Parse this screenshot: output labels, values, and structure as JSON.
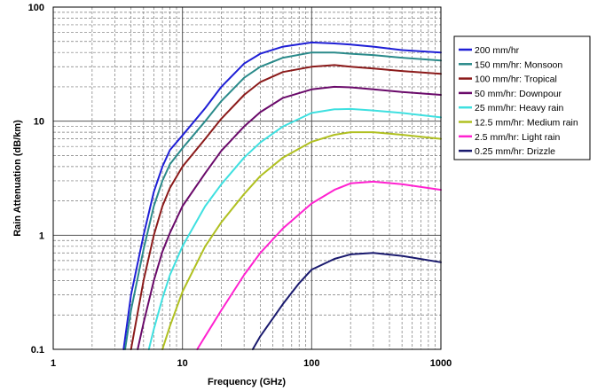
{
  "chart_data": {
    "type": "line",
    "xlabel": "Frequency (GHz)",
    "ylabel": "Rain Attenuation (dB/km)",
    "xscale": "log",
    "yscale": "log",
    "xlim": [
      1,
      1000
    ],
    "ylim": [
      0.1,
      100
    ],
    "x_ticks": [
      "1",
      "10",
      "100",
      "1000"
    ],
    "y_ticks": [
      "0.1",
      "1",
      "10",
      "100"
    ],
    "grid": true,
    "legend_position": "right",
    "series": [
      {
        "name": "200 mm/hr",
        "color": "#1f1fd6",
        "points": [
          [
            3.5,
            0.1
          ],
          [
            4,
            0.3
          ],
          [
            5,
            1.0
          ],
          [
            6,
            2.4
          ],
          [
            7,
            4.0
          ],
          [
            8,
            5.6
          ],
          [
            10,
            7.5
          ],
          [
            15,
            13
          ],
          [
            20,
            20
          ],
          [
            30,
            32
          ],
          [
            40,
            39
          ],
          [
            60,
            45
          ],
          [
            100,
            49
          ],
          [
            150,
            48
          ],
          [
            200,
            47
          ],
          [
            300,
            45
          ],
          [
            500,
            42
          ],
          [
            1000,
            40
          ]
        ]
      },
      {
        "name": "150 mm/hr: Monsoon",
        "color": "#2a8a8a",
        "points": [
          [
            3.6,
            0.1
          ],
          [
            4,
            0.22
          ],
          [
            5,
            0.75
          ],
          [
            6,
            1.8
          ],
          [
            7,
            3.0
          ],
          [
            8,
            4.2
          ],
          [
            10,
            5.8
          ],
          [
            15,
            10
          ],
          [
            20,
            15
          ],
          [
            30,
            24
          ],
          [
            40,
            30
          ],
          [
            60,
            36
          ],
          [
            100,
            40
          ],
          [
            150,
            40
          ],
          [
            200,
            39
          ],
          [
            300,
            38
          ],
          [
            500,
            36
          ],
          [
            1000,
            34
          ]
        ]
      },
      {
        "name": "100 mm/hr: Tropical",
        "color": "#8b1a1a",
        "points": [
          [
            4,
            0.1
          ],
          [
            5,
            0.4
          ],
          [
            6,
            1.0
          ],
          [
            7,
            1.8
          ],
          [
            8,
            2.6
          ],
          [
            10,
            4.0
          ],
          [
            15,
            7
          ],
          [
            20,
            10.5
          ],
          [
            30,
            17
          ],
          [
            40,
            22
          ],
          [
            60,
            27
          ],
          [
            100,
            30
          ],
          [
            150,
            31
          ],
          [
            200,
            30
          ],
          [
            300,
            29
          ],
          [
            500,
            27.5
          ],
          [
            1000,
            26
          ]
        ]
      },
      {
        "name": "50 mm/hr: Downpour",
        "color": "#6a0a6a",
        "points": [
          [
            4.5,
            0.1
          ],
          [
            5,
            0.17
          ],
          [
            6,
            0.4
          ],
          [
            7,
            0.72
          ],
          [
            8,
            1.05
          ],
          [
            10,
            1.8
          ],
          [
            15,
            3.5
          ],
          [
            20,
            5.5
          ],
          [
            30,
            9
          ],
          [
            40,
            12
          ],
          [
            60,
            16
          ],
          [
            100,
            19
          ],
          [
            150,
            20
          ],
          [
            200,
            19.8
          ],
          [
            300,
            19
          ],
          [
            500,
            18
          ],
          [
            1000,
            17
          ]
        ]
      },
      {
        "name": "25 mm/hr: Heavy rain",
        "color": "#3fe0e0",
        "points": [
          [
            5.5,
            0.1
          ],
          [
            6,
            0.15
          ],
          [
            7,
            0.28
          ],
          [
            8,
            0.45
          ],
          [
            10,
            0.8
          ],
          [
            15,
            1.8
          ],
          [
            20,
            2.8
          ],
          [
            30,
            4.8
          ],
          [
            40,
            6.5
          ],
          [
            60,
            9
          ],
          [
            100,
            11.8
          ],
          [
            150,
            12.7
          ],
          [
            200,
            12.8
          ],
          [
            300,
            12.4
          ],
          [
            500,
            11.8
          ],
          [
            1000,
            10.8
          ]
        ]
      },
      {
        "name": "12.5 mm/hr: Medium rain",
        "color": "#b0c020",
        "points": [
          [
            7,
            0.1
          ],
          [
            8,
            0.16
          ],
          [
            10,
            0.32
          ],
          [
            15,
            0.8
          ],
          [
            20,
            1.3
          ],
          [
            30,
            2.3
          ],
          [
            40,
            3.3
          ],
          [
            60,
            4.8
          ],
          [
            100,
            6.6
          ],
          [
            150,
            7.6
          ],
          [
            200,
            8.0
          ],
          [
            300,
            8.0
          ],
          [
            500,
            7.6
          ],
          [
            1000,
            7.0
          ]
        ]
      },
      {
        "name": "2.5 mm/hr: Light rain",
        "color": "#ff22d0",
        "points": [
          [
            13,
            0.1
          ],
          [
            15,
            0.13
          ],
          [
            20,
            0.22
          ],
          [
            30,
            0.45
          ],
          [
            40,
            0.7
          ],
          [
            60,
            1.15
          ],
          [
            100,
            1.9
          ],
          [
            150,
            2.5
          ],
          [
            200,
            2.85
          ],
          [
            300,
            2.95
          ],
          [
            500,
            2.8
          ],
          [
            1000,
            2.5
          ]
        ]
      },
      {
        "name": "0.25 mm/hr: Drizzle",
        "color": "#1a1a6e",
        "points": [
          [
            35,
            0.1
          ],
          [
            40,
            0.13
          ],
          [
            60,
            0.25
          ],
          [
            80,
            0.38
          ],
          [
            100,
            0.5
          ],
          [
            150,
            0.62
          ],
          [
            200,
            0.68
          ],
          [
            300,
            0.7
          ],
          [
            500,
            0.66
          ],
          [
            1000,
            0.58
          ]
        ]
      }
    ]
  }
}
